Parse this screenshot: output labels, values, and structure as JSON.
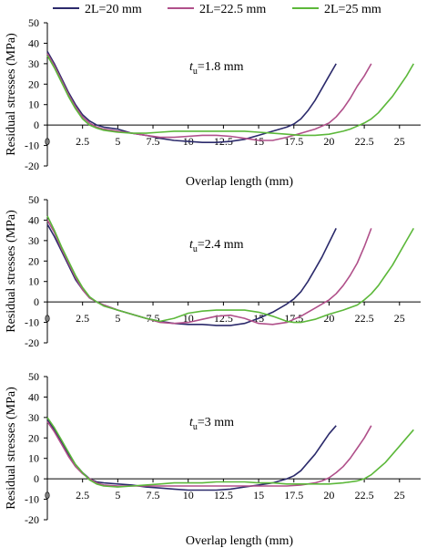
{
  "chart_data": [
    {
      "type": "line",
      "panel_label": {
        "main": "t",
        "sub": "u",
        "rest": "=1.8 mm"
      },
      "xlabel": "Overlap length (mm)",
      "ylabel": "Residual stresses (MPa)",
      "xlim": [
        0,
        26.5
      ],
      "ylim": [
        -20,
        50
      ],
      "xticks": [
        0,
        2.5,
        5,
        7.5,
        10,
        12.5,
        15,
        17.5,
        20,
        22.5,
        25
      ],
      "yticks": [
        -20,
        -10,
        0,
        10,
        20,
        30,
        40,
        50
      ],
      "series": [
        {
          "name": "2L=20 mm",
          "color": "#2b2a6b",
          "x": [
            0,
            0.5,
            1,
            1.5,
            2,
            2.5,
            3,
            3.5,
            4,
            5,
            6,
            7,
            8,
            9,
            10,
            11,
            12,
            13,
            14,
            15,
            16,
            16.5,
            17,
            17.5,
            18,
            18.5,
            19,
            19.5,
            20,
            20.5
          ],
          "y": [
            36,
            30,
            23,
            16,
            10,
            5,
            2,
            0,
            -1,
            -2,
            -4,
            -5,
            -6.5,
            -7.5,
            -8,
            -8.5,
            -8.5,
            -8,
            -7,
            -5,
            -3,
            -2,
            -1,
            0.5,
            3,
            7,
            12,
            18,
            24,
            30
          ]
        },
        {
          "name": "2L=22.5 mm",
          "color": "#b0508a",
          "x": [
            0,
            0.5,
            1,
            1.5,
            2,
            2.5,
            3,
            3.5,
            4,
            5,
            6,
            7,
            8,
            9,
            10,
            11,
            12,
            13,
            14,
            15,
            16,
            17,
            18,
            19,
            19.5,
            20,
            20.5,
            21,
            21.5,
            22,
            22.5,
            23
          ],
          "y": [
            35,
            29,
            22,
            15,
            9,
            4,
            1,
            -1,
            -2,
            -3,
            -4,
            -5,
            -6,
            -6,
            -5.5,
            -5,
            -5,
            -5.5,
            -6.5,
            -7.5,
            -7.5,
            -6,
            -4,
            -2,
            -0.5,
            1,
            4,
            8,
            13,
            19,
            24,
            30
          ]
        },
        {
          "name": "2L=25 mm",
          "color": "#5cb83a",
          "x": [
            0,
            0.5,
            1,
            1.5,
            2,
            2.5,
            3,
            3.5,
            4,
            5,
            6,
            7,
            8,
            9,
            10,
            11,
            12,
            13,
            14,
            15,
            16,
            17,
            18,
            19,
            20,
            21,
            21.5,
            22,
            22.5,
            23,
            23.5,
            24,
            24.5,
            25,
            25.5,
            26
          ],
          "y": [
            34,
            28,
            21,
            14,
            8,
            3,
            0,
            -1.5,
            -2.5,
            -3.5,
            -4,
            -4,
            -3.5,
            -3,
            -3,
            -3,
            -3,
            -3,
            -3,
            -3.5,
            -4,
            -4.5,
            -5,
            -5,
            -4.5,
            -3,
            -2,
            -0.5,
            1,
            3,
            6,
            10,
            14,
            19,
            24,
            30
          ]
        }
      ]
    },
    {
      "type": "line",
      "panel_label": {
        "main": "t",
        "sub": "u",
        "rest": "=2.4 mm"
      },
      "xlabel": "",
      "ylabel": "Residual stresses (MPa)",
      "xlim": [
        0,
        26.5
      ],
      "ylim": [
        -20,
        50
      ],
      "xticks": [
        0,
        2.5,
        5,
        7.5,
        10,
        12.5,
        15,
        17.5,
        20,
        22.5,
        25
      ],
      "yticks": [
        -20,
        -10,
        0,
        10,
        20,
        30,
        40,
        50
      ],
      "series": [
        {
          "name": "2L=20 mm",
          "color": "#2b2a6b",
          "x": [
            0,
            0.5,
            1,
            1.5,
            2,
            2.5,
            3,
            3.5,
            4,
            5,
            6,
            7,
            8,
            9,
            10,
            11,
            12,
            13,
            14,
            15,
            16,
            16.5,
            17,
            17.5,
            18,
            18.5,
            19,
            19.5,
            20,
            20.5
          ],
          "y": [
            38,
            32,
            25,
            18,
            11,
            6,
            2,
            0,
            -1.5,
            -4,
            -6,
            -8,
            -9.5,
            -10.5,
            -11,
            -11,
            -11.5,
            -11.5,
            -10.5,
            -8,
            -5,
            -3,
            -1,
            1.5,
            5,
            10,
            16,
            22,
            29,
            36
          ]
        },
        {
          "name": "2L=22.5 mm",
          "color": "#b0508a",
          "x": [
            0,
            0.5,
            1,
            1.5,
            2,
            2.5,
            3,
            3.5,
            4,
            5,
            6,
            7,
            8,
            9,
            10,
            11,
            12,
            13,
            14,
            15,
            16,
            17,
            18,
            19,
            19.5,
            20,
            20.5,
            21,
            21.5,
            22,
            22.5,
            23
          ],
          "y": [
            40,
            34,
            26,
            19,
            12,
            6,
            2,
            0,
            -1.5,
            -4,
            -6,
            -8,
            -10,
            -10.5,
            -10,
            -8.5,
            -7,
            -6.5,
            -8,
            -10.5,
            -11,
            -10,
            -7,
            -3,
            -1,
            1,
            4,
            8,
            13,
            19,
            27,
            36
          ]
        },
        {
          "name": "2L=25 mm",
          "color": "#5cb83a",
          "x": [
            0,
            0.5,
            1,
            1.5,
            2,
            2.5,
            3,
            3.5,
            4,
            5,
            6,
            7,
            8,
            9,
            10,
            11,
            12,
            13,
            14,
            15,
            16,
            17,
            17.5,
            18,
            19,
            20,
            21,
            22,
            22.5,
            23,
            23.5,
            24,
            24.5,
            25,
            25.5,
            26
          ],
          "y": [
            42,
            35,
            27,
            20,
            13,
            7,
            2.5,
            0,
            -2,
            -4,
            -6,
            -8,
            -9.5,
            -8,
            -5.5,
            -4.5,
            -4,
            -4,
            -4,
            -5,
            -7,
            -9.5,
            -10,
            -10,
            -8.5,
            -6,
            -4,
            -1.5,
            1,
            4,
            8,
            13,
            18,
            24,
            30,
            36
          ]
        }
      ]
    },
    {
      "type": "line",
      "panel_label": {
        "main": "t",
        "sub": "u",
        "rest": "=3 mm"
      },
      "xlabel": "Overlap length (mm)",
      "ylabel": "Residual stresses (MPa)",
      "xlim": [
        0,
        26.5
      ],
      "ylim": [
        -20,
        50
      ],
      "xticks": [
        0,
        2.5,
        5,
        7.5,
        10,
        12.5,
        15,
        17.5,
        20,
        22.5,
        25
      ],
      "yticks": [
        -20,
        -10,
        0,
        10,
        20,
        30,
        40,
        50
      ],
      "series": [
        {
          "name": "2L=20 mm",
          "color": "#2b2a6b",
          "x": [
            0,
            0.5,
            1,
            1.5,
            2,
            2.5,
            3,
            3.5,
            4,
            5,
            6,
            7,
            8,
            9,
            10,
            11,
            12,
            13,
            14,
            15,
            16,
            16.5,
            17,
            17.5,
            18,
            18.5,
            19,
            19.5,
            20,
            20.5
          ],
          "y": [
            29,
            24,
            18,
            12,
            7,
            3,
            0,
            -1.5,
            -2,
            -2.5,
            -3,
            -4,
            -4.5,
            -5,
            -5.5,
            -5.5,
            -5.5,
            -5,
            -4,
            -3,
            -2,
            -1,
            0,
            1.5,
            4,
            8,
            12,
            17,
            22,
            26
          ]
        },
        {
          "name": "2L=22.5 mm",
          "color": "#b0508a",
          "x": [
            0,
            0.5,
            1,
            1.5,
            2,
            2.5,
            3,
            3.5,
            4,
            5,
            6,
            7,
            8,
            9,
            10,
            11,
            12,
            13,
            14,
            15,
            16,
            17,
            18,
            19,
            19.5,
            20,
            20.5,
            21,
            21.5,
            22,
            22.5,
            23
          ],
          "y": [
            28,
            23,
            17,
            11,
            6,
            2.5,
            0,
            -2,
            -3,
            -3.5,
            -3.5,
            -3.5,
            -3.5,
            -3.5,
            -3.5,
            -3.5,
            -3.5,
            -3.5,
            -3.5,
            -3.5,
            -3.5,
            -3.5,
            -3,
            -2,
            -1,
            0.5,
            3,
            6,
            10,
            15,
            20,
            26
          ]
        },
        {
          "name": "2L=25 mm",
          "color": "#5cb83a",
          "x": [
            0,
            0.5,
            1,
            1.5,
            2,
            2.5,
            3,
            3.5,
            4,
            5,
            6,
            7,
            8,
            9,
            10,
            11,
            12,
            13,
            14,
            15,
            16,
            17,
            18,
            19,
            20,
            21,
            22,
            22.5,
            23,
            23.5,
            24,
            24.5,
            25,
            25.5,
            26
          ],
          "y": [
            30,
            25,
            19,
            13,
            7,
            3,
            -0.5,
            -2.5,
            -3.5,
            -4,
            -3.5,
            -3,
            -2.5,
            -2,
            -2,
            -2,
            -1.5,
            -1.5,
            -1.5,
            -2,
            -2,
            -2.5,
            -2.5,
            -2.5,
            -2.5,
            -2,
            -1,
            0,
            2,
            5,
            8,
            12,
            16,
            20,
            24
          ]
        }
      ]
    }
  ]
}
